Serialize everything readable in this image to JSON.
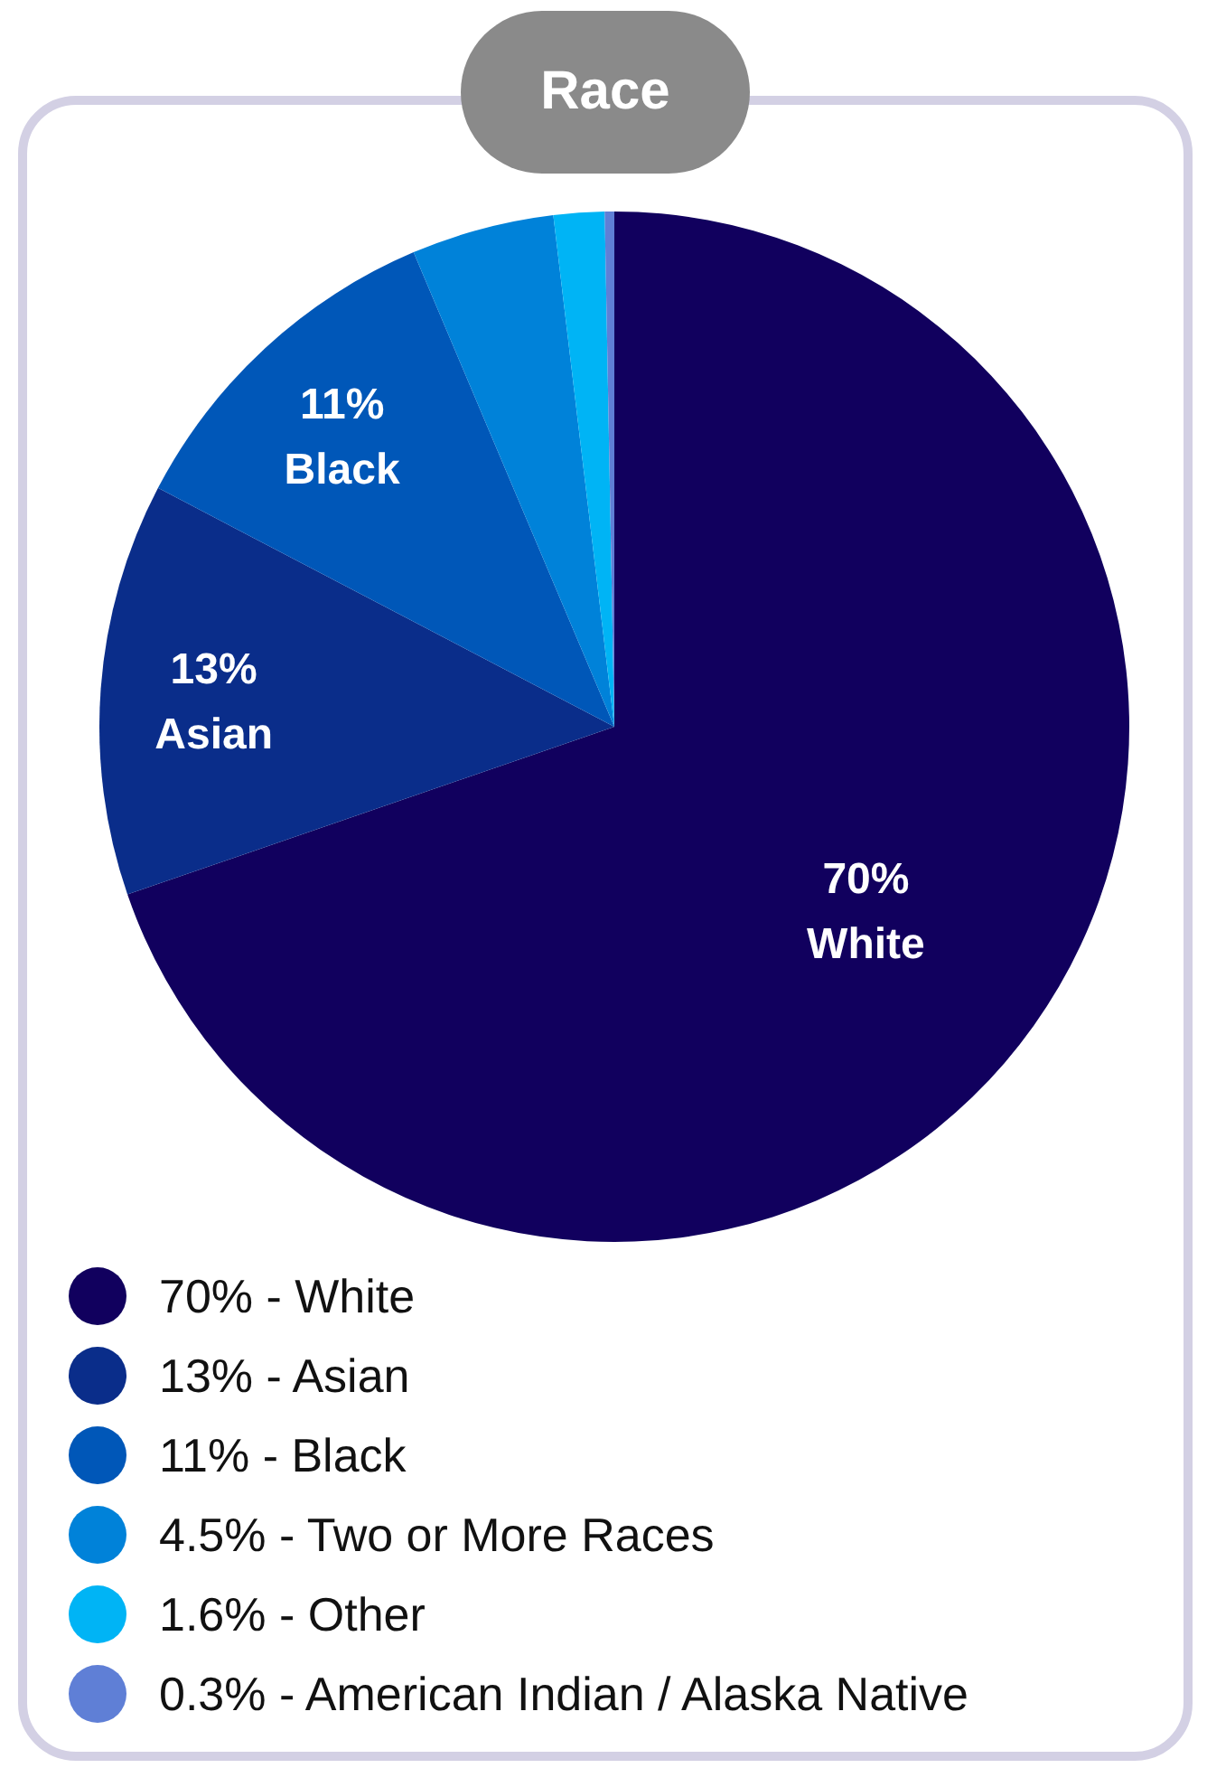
{
  "chart_data": {
    "type": "pie",
    "title": "Race",
    "categories": [
      "White",
      "Asian",
      "Black",
      "Two or More Races",
      "Other",
      "American Indian / Alaska Native"
    ],
    "values": [
      70,
      13,
      11,
      4.5,
      1.6,
      0.3
    ],
    "value_labels": [
      "70%",
      "13%",
      "11%",
      "4.5%",
      "1.6%",
      "0.3%"
    ],
    "colors": [
      "#11005e",
      "#0a2d8a",
      "#0057b8",
      "#0082d9",
      "#00b4f5",
      "#5f7fd6"
    ],
    "annotations": [
      "-"
    ],
    "legend": "bottom"
  }
}
